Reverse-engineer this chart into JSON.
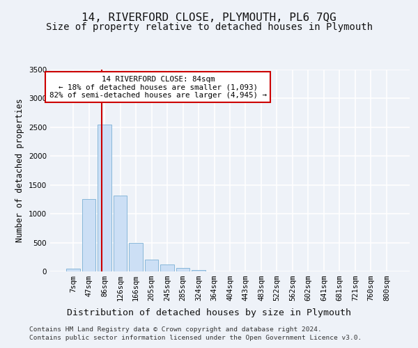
{
  "title": "14, RIVERFORD CLOSE, PLYMOUTH, PL6 7QG",
  "subtitle": "Size of property relative to detached houses in Plymouth",
  "xlabel": "Distribution of detached houses by size in Plymouth",
  "ylabel": "Number of detached properties",
  "bar_labels": [
    "7sqm",
    "47sqm",
    "86sqm",
    "126sqm",
    "166sqm",
    "205sqm",
    "245sqm",
    "285sqm",
    "324sqm",
    "364sqm",
    "404sqm",
    "443sqm",
    "483sqm",
    "522sqm",
    "562sqm",
    "602sqm",
    "641sqm",
    "681sqm",
    "721sqm",
    "760sqm",
    "800sqm"
  ],
  "bar_values": [
    50,
    1250,
    2550,
    1320,
    490,
    200,
    120,
    60,
    20,
    5,
    2,
    1,
    1,
    0,
    0,
    0,
    0,
    0,
    0,
    0,
    0
  ],
  "bar_color": "#ccdff5",
  "bar_edge_color": "#7bafd4",
  "property_line_x": 1.82,
  "annotation_text": "14 RIVERFORD CLOSE: 84sqm\n← 18% of detached houses are smaller (1,093)\n82% of semi-detached houses are larger (4,945) →",
  "annotation_box_color": "white",
  "annotation_box_edge_color": "#cc0000",
  "red_line_color": "#cc0000",
  "ylim": [
    0,
    3500
  ],
  "yticks": [
    0,
    500,
    1000,
    1500,
    2000,
    2500,
    3000,
    3500
  ],
  "footer_line1": "Contains HM Land Registry data © Crown copyright and database right 2024.",
  "footer_line2": "Contains public sector information licensed under the Open Government Licence v3.0.",
  "bg_color": "#eef2f8",
  "grid_color": "#ffffff",
  "title_fontsize": 11.5,
  "subtitle_fontsize": 10,
  "xlabel_fontsize": 9.5,
  "ylabel_fontsize": 8.5,
  "tick_fontsize": 7.5,
  "footer_fontsize": 6.8,
  "annotation_fontsize": 7.8
}
